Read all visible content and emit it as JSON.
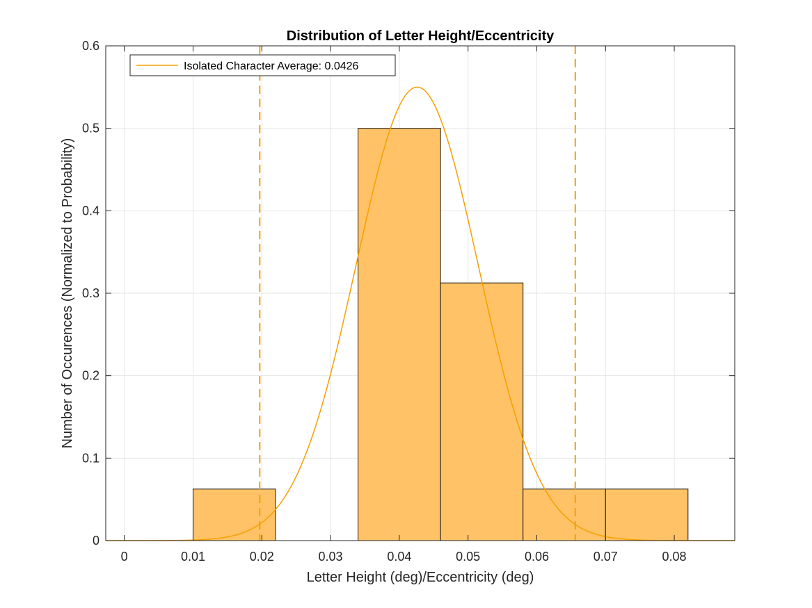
{
  "chart_data": {
    "type": "bar",
    "title": "Distribution of Letter Height/Eccentricity",
    "xlabel": "Letter Height (deg)/Eccentricity (deg)",
    "ylabel": "Number of Occurences (Normalized to Probability)",
    "xlim": [
      -0.0027,
      0.0888
    ],
    "ylim": [
      0,
      0.6
    ],
    "xticks": [
      0,
      0.01,
      0.02,
      0.03,
      0.04,
      0.05,
      0.06,
      0.07,
      0.08
    ],
    "xtick_labels": [
      "0",
      "0.01",
      "0.02",
      "0.03",
      "0.04",
      "0.05",
      "0.06",
      "0.07",
      "0.08"
    ],
    "yticks": [
      0,
      0.1,
      0.2,
      0.3,
      0.4,
      0.5,
      0.6
    ],
    "ytick_labels": [
      "0",
      "0.1",
      "0.2",
      "0.3",
      "0.4",
      "0.5",
      "0.6"
    ],
    "grid": true,
    "legend_position": "top-left",
    "bins": [
      {
        "x0": 0.01,
        "x1": 0.022,
        "value": 0.0625
      },
      {
        "x0": 0.022,
        "x1": 0.034,
        "value": 0
      },
      {
        "x0": 0.034,
        "x1": 0.046,
        "value": 0.5
      },
      {
        "x0": 0.046,
        "x1": 0.058,
        "value": 0.3125
      },
      {
        "x0": 0.058,
        "x1": 0.07,
        "value": 0.0625
      },
      {
        "x0": 0.07,
        "x1": 0.082,
        "value": 0.0625
      }
    ],
    "fit_curve": {
      "name": "Isolated Character Average: 0.0426",
      "type": "gaussian",
      "mean": 0.0426,
      "sigma": 0.0089,
      "peak": 0.55
    },
    "reference_lines": [
      {
        "x": 0.0197,
        "style": "dashed"
      },
      {
        "x": 0.0656,
        "style": "dashed"
      }
    ],
    "colors": {
      "bar_fill": "#FFC266",
      "bar_edge": "#1a1a1a",
      "curve": "#F5A000",
      "grid": "#e6e6e6",
      "axis": "#262626"
    }
  }
}
